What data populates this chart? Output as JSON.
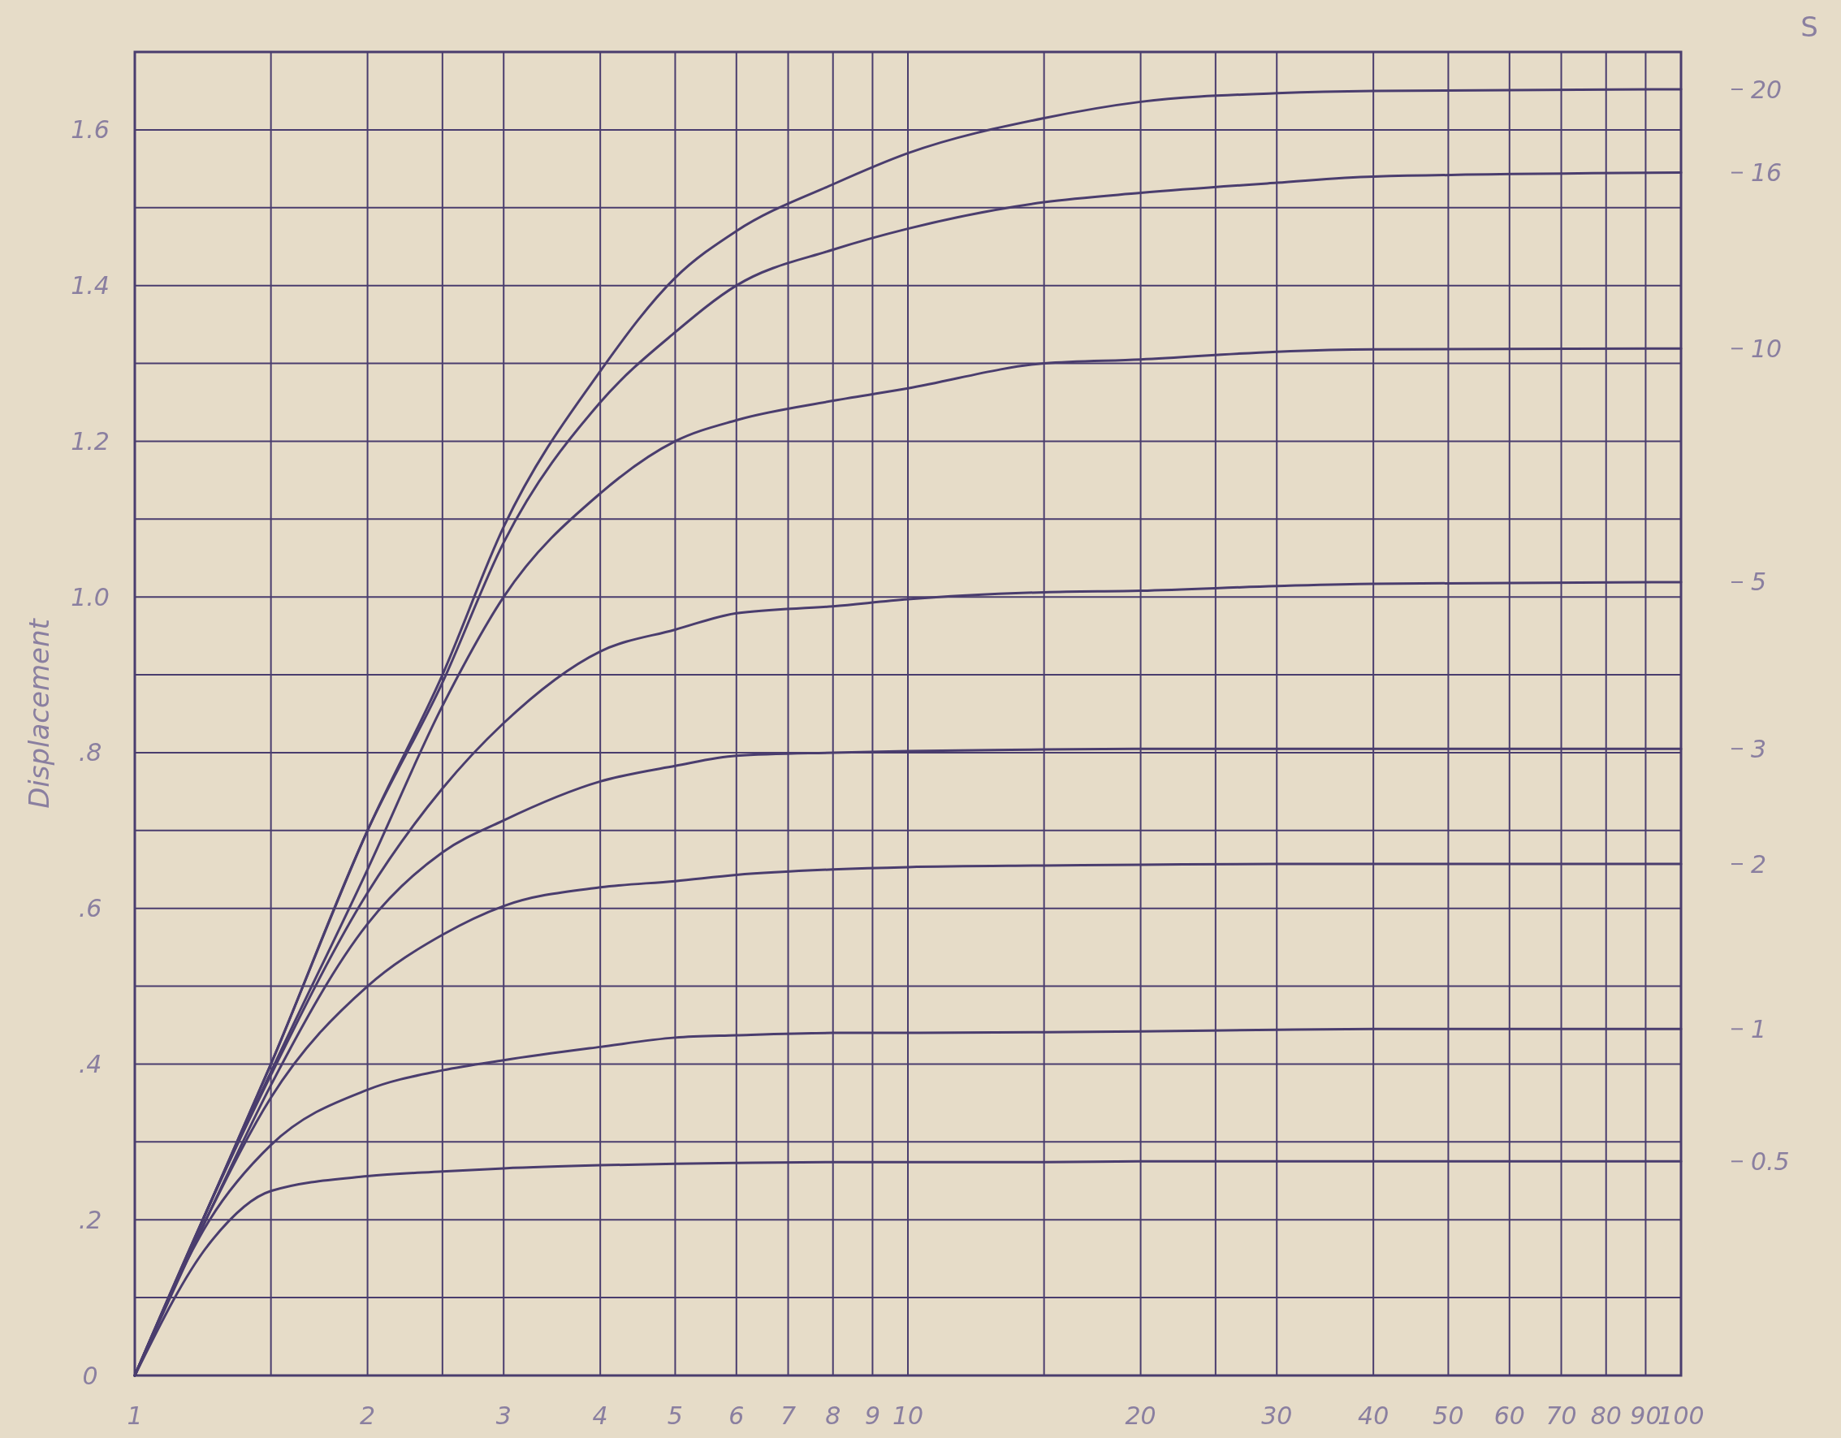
{
  "chart_data": {
    "type": "line",
    "ylabel": "Displacement",
    "legend_title": "S",
    "log": "x",
    "grid": true,
    "marker": "none",
    "line_style": "solid",
    "xlim": [
      1,
      100
    ],
    "ylim": [
      0,
      1.7
    ],
    "xticks": [
      1,
      {
        "value": 1.5,
        "label": null
      },
      2,
      {
        "value": 2.5,
        "label": null
      },
      3,
      4,
      5,
      6,
      7,
      8,
      9,
      10,
      {
        "value": 15,
        "label": null
      },
      20,
      {
        "value": 25,
        "label": null
      },
      30,
      40,
      50,
      60,
      70,
      80,
      90,
      100
    ],
    "yticks": [
      0,
      {
        "value": 0.1,
        "label": null
      },
      {
        "value": 0.2,
        "label": ".2"
      },
      {
        "value": 0.3,
        "label": null
      },
      {
        "value": 0.4,
        "label": ".4"
      },
      {
        "value": 0.5,
        "label": null
      },
      {
        "value": 0.6,
        "label": ".6"
      },
      {
        "value": 0.7,
        "label": null
      },
      {
        "value": 0.8,
        "label": ".8"
      },
      {
        "value": 0.9,
        "label": null
      },
      {
        "value": 1.0,
        "label": "1.0"
      },
      {
        "value": 1.1,
        "label": null
      },
      {
        "value": 1.2,
        "label": "1.2"
      },
      {
        "value": 1.3,
        "label": null
      },
      {
        "value": 1.4,
        "label": "1.4"
      },
      {
        "value": 1.5,
        "label": null
      },
      {
        "value": 1.6,
        "label": "1.6"
      },
      {
        "value": 1.7,
        "label": null
      }
    ],
    "x": [
      1,
      1.25,
      1.5,
      2,
      2.5,
      3,
      4,
      5,
      6,
      8,
      10,
      15,
      20,
      30,
      40,
      100
    ],
    "series": [
      {
        "name": "20",
        "color": "#4a3d6e",
        "values": [
          0,
          0.22,
          0.4,
          0.7,
          0.9,
          1.09,
          1.29,
          1.41,
          1.47,
          1.53,
          1.57,
          1.615,
          1.636,
          1.647,
          1.65,
          1.652
        ]
      },
      {
        "name": "16",
        "color": "#4a3d6e",
        "values": [
          0,
          0.22,
          0.4,
          0.7,
          0.89,
          1.07,
          1.25,
          1.34,
          1.4,
          1.446,
          1.473,
          1.507,
          1.519,
          1.532,
          1.54,
          1.545
        ]
      },
      {
        "name": "10",
        "color": "#4a3d6e",
        "values": [
          0,
          0.22,
          0.39,
          0.65,
          0.86,
          1.0,
          1.133,
          1.2,
          1.227,
          1.252,
          1.268,
          1.3,
          1.305,
          1.315,
          1.318,
          1.319
        ]
      },
      {
        "name": "5",
        "color": "#4a3d6e",
        "values": [
          0,
          0.22,
          0.386,
          0.62,
          0.754,
          0.838,
          0.93,
          0.958,
          0.979,
          0.988,
          0.997,
          1.006,
          1.008,
          1.014,
          1.017,
          1.019
        ]
      },
      {
        "name": "3",
        "color": "#4a3d6e",
        "values": [
          0,
          0.21,
          0.373,
          0.58,
          0.672,
          0.713,
          0.763,
          0.783,
          0.796,
          0.8,
          0.802,
          0.804,
          0.805,
          0.805,
          0.805,
          0.805
        ]
      },
      {
        "name": "2",
        "color": "#4a3d6e",
        "values": [
          0,
          0.21,
          0.357,
          0.5,
          0.566,
          0.603,
          0.627,
          0.635,
          0.643,
          0.65,
          0.653,
          0.655,
          0.656,
          0.657,
          0.657,
          0.657
        ]
      },
      {
        "name": "1",
        "color": "#4a3d6e",
        "values": [
          0,
          0.2,
          0.296,
          0.367,
          0.392,
          0.405,
          0.422,
          0.434,
          0.437,
          0.44,
          0.44,
          0.441,
          0.442,
          0.444,
          0.445,
          0.445
        ]
      },
      {
        "name": "0.5",
        "color": "#4a3d6e",
        "values": [
          0,
          0.17,
          0.237,
          0.256,
          0.262,
          0.266,
          0.27,
          0.272,
          0.273,
          0.274,
          0.274,
          0.274,
          0.275,
          0.275,
          0.275,
          0.275
        ]
      }
    ]
  }
}
